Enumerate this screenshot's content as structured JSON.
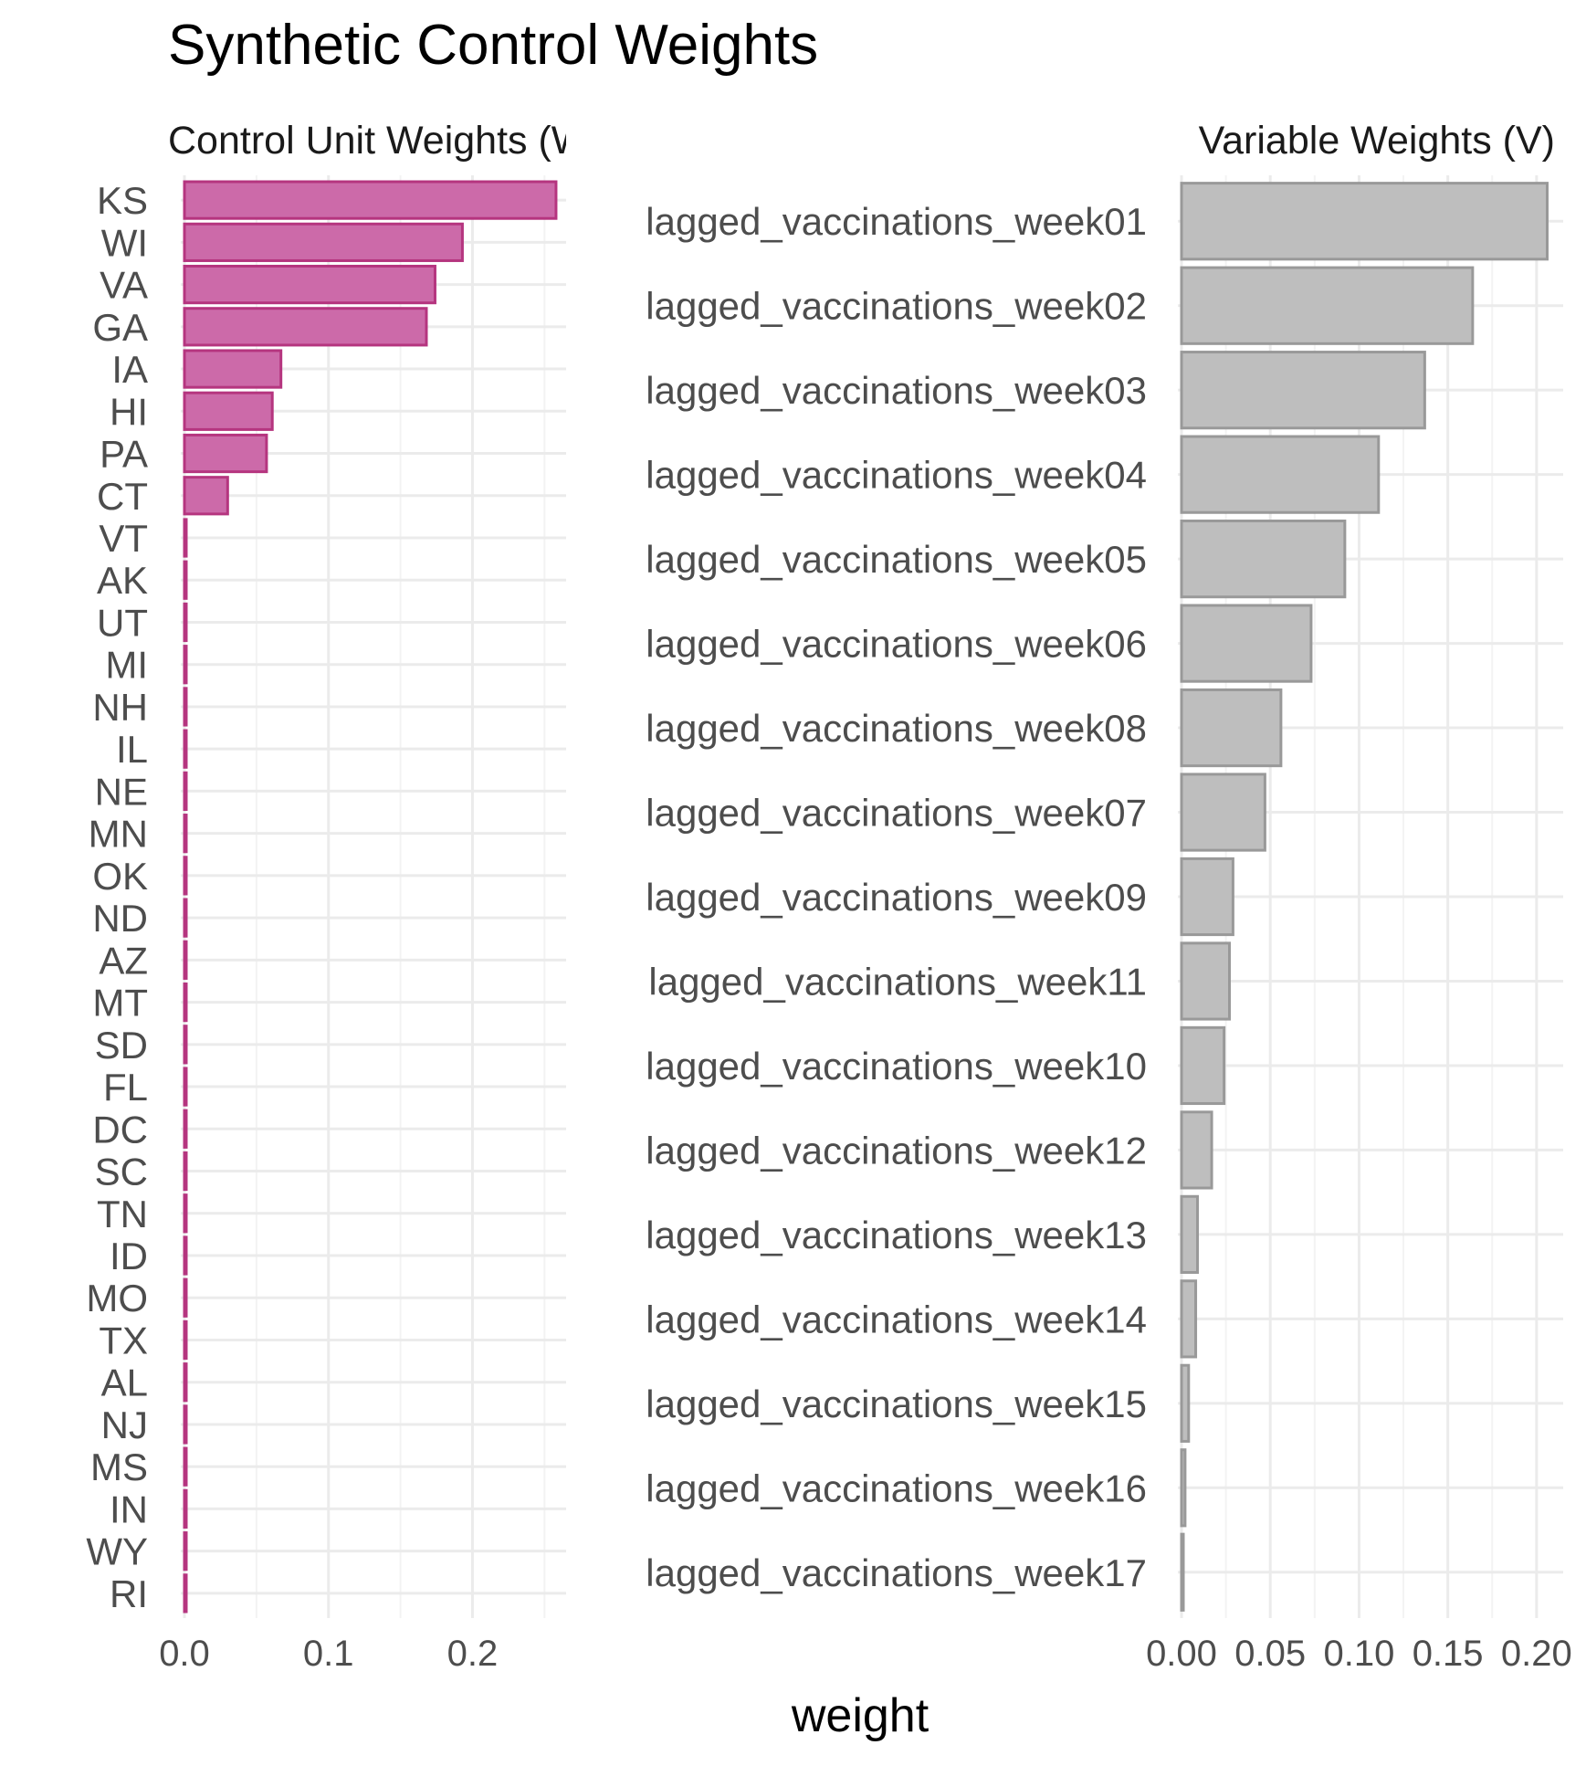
{
  "chart_data": {
    "type": "bar",
    "title": "Synthetic Control Weights",
    "xlabel": "weight",
    "panels": [
      {
        "strip": "Control Unit Weights (W)",
        "orientation": "horizontal",
        "fill": "#cc6aa9",
        "stroke": "#b5357f",
        "xlim": [
          0,
          0.265
        ],
        "ticks": [
          0.0,
          0.1,
          0.2
        ],
        "tick_labels": [
          "0.0",
          "0.1",
          "0.2"
        ],
        "categories": [
          "KS",
          "WI",
          "VA",
          "GA",
          "IA",
          "HI",
          "PA",
          "CT",
          "VT",
          "AK",
          "UT",
          "MI",
          "NH",
          "IL",
          "NE",
          "MN",
          "OK",
          "ND",
          "AZ",
          "MT",
          "SD",
          "FL",
          "DC",
          "SC",
          "TN",
          "ID",
          "MO",
          "TX",
          "AL",
          "NJ",
          "MS",
          "IN",
          "WY",
          "RI"
        ],
        "values": [
          0.258,
          0.193,
          0.174,
          0.168,
          0.067,
          0.061,
          0.057,
          0.03,
          0.001,
          0.001,
          0.001,
          0.001,
          0.001,
          0.001,
          0.001,
          0.001,
          0.001,
          0.001,
          0.001,
          0.001,
          0.001,
          0.001,
          0.001,
          0.001,
          0.001,
          0.001,
          0.001,
          0.001,
          0.001,
          0.001,
          0.001,
          0.001,
          0.001,
          0.001
        ]
      },
      {
        "strip": "Variable Weights (V)",
        "orientation": "horizontal",
        "fill": "#bebebe",
        "stroke": "#999999",
        "xlim": [
          0,
          0.215
        ],
        "ticks": [
          0.0,
          0.05,
          0.1,
          0.15,
          0.2
        ],
        "tick_labels": [
          "0.00",
          "0.05",
          "0.10",
          "0.15",
          "0.20"
        ],
        "categories": [
          "lagged_vaccinations_week01",
          "lagged_vaccinations_week02",
          "lagged_vaccinations_week03",
          "lagged_vaccinations_week04",
          "lagged_vaccinations_week05",
          "lagged_vaccinations_week06",
          "lagged_vaccinations_week08",
          "lagged_vaccinations_week07",
          "lagged_vaccinations_week09",
          "lagged_vaccinations_week11",
          "lagged_vaccinations_week10",
          "lagged_vaccinations_week12",
          "lagged_vaccinations_week13",
          "lagged_vaccinations_week14",
          "lagged_vaccinations_week15",
          "lagged_vaccinations_week16",
          "lagged_vaccinations_week17"
        ],
        "values": [
          0.206,
          0.164,
          0.137,
          0.111,
          0.092,
          0.073,
          0.056,
          0.047,
          0.029,
          0.027,
          0.024,
          0.017,
          0.009,
          0.008,
          0.004,
          0.002,
          0.001
        ]
      }
    ]
  }
}
